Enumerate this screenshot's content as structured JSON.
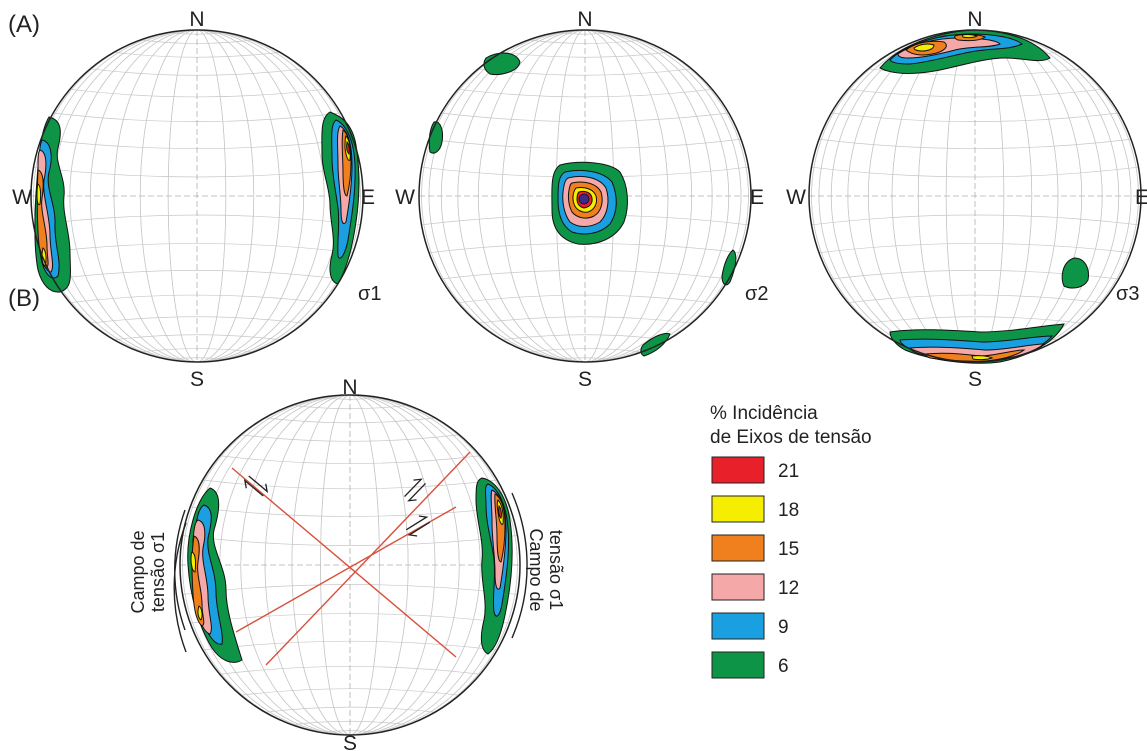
{
  "panels": {
    "A": {
      "label": "(A)"
    },
    "B": {
      "label": "(B)"
    }
  },
  "cardinals": {
    "north": "N",
    "south": "S",
    "east": "E",
    "west": "W"
  },
  "stereonets": [
    {
      "id": "sigma1",
      "sigma_label": "σ1"
    },
    {
      "id": "sigma2",
      "sigma_label": "σ2"
    },
    {
      "id": "sigma3",
      "sigma_label": "σ3"
    },
    {
      "id": "combined",
      "sigma_label": ""
    }
  ],
  "stress_field": {
    "left_line1": "Campo de",
    "left_line2": "tensão σ1",
    "right_line1": "Campo de",
    "right_line2": "tensão σ1"
  },
  "legend": {
    "title_line1": "% Incidência",
    "title_line2": "de Eixos de tensão",
    "items": [
      {
        "value": "21",
        "color": "#e8202a"
      },
      {
        "value": "18",
        "color": "#f5ee00"
      },
      {
        "value": "15",
        "color": "#f0801e"
      },
      {
        "value": "12",
        "color": "#f4a8a8"
      },
      {
        "value": "9",
        "color": "#1aa0e0"
      },
      {
        "value": "6",
        "color": "#0d9447"
      }
    ]
  },
  "colors": {
    "c6": "#0d9447",
    "c9": "#1aa0e0",
    "c12": "#f4a8a8",
    "c15": "#f0801e",
    "c18": "#f5ee00",
    "c21": "#e8202a",
    "peak": "#3a2a8c",
    "fault_line": "#d9503c",
    "grid": "#c8c8c8"
  }
}
